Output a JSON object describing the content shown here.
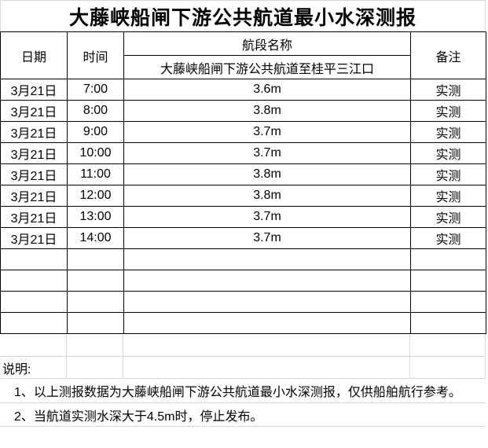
{
  "title": "大藤峡船闸下游公共航道最小水深测报",
  "table": {
    "headers": {
      "date": "日期",
      "time": "时间",
      "section_name": "航段名称",
      "section_value": "大藤峡船闸下游公共航道至桂平三江口",
      "remark": "备注"
    },
    "rows": [
      {
        "date": "3月21日",
        "time": "7:00",
        "depth": "3.6m",
        "remark": "实测"
      },
      {
        "date": "3月21日",
        "time": "8:00",
        "depth": "3.8m",
        "remark": "实测"
      },
      {
        "date": "3月21日",
        "time": "9:00",
        "depth": "3.7m",
        "remark": "实测"
      },
      {
        "date": "3月21日",
        "time": "10:00",
        "depth": "3.7m",
        "remark": "实测"
      },
      {
        "date": "3月21日",
        "time": "11:00",
        "depth": "3.8m",
        "remark": "实测"
      },
      {
        "date": "3月21日",
        "time": "12:00",
        "depth": "3.8m",
        "remark": "实测"
      },
      {
        "date": "3月21日",
        "time": "13:00",
        "depth": "3.7m",
        "remark": "实测"
      },
      {
        "date": "3月21日",
        "time": "14:00",
        "depth": "3.7m",
        "remark": "实测"
      },
      {
        "date": "",
        "time": "",
        "depth": "",
        "remark": ""
      },
      {
        "date": "",
        "time": "",
        "depth": "",
        "remark": ""
      },
      {
        "date": "",
        "time": "",
        "depth": "",
        "remark": ""
      },
      {
        "date": "",
        "time": "",
        "depth": "",
        "remark": ""
      }
    ]
  },
  "footer": {
    "label": "说明:",
    "notes": [
      "1、以上测报数据为大藤峡船闸下游公共航道最小水深测报，仅供船舶航行参考。",
      "2、当航道实测水深大于4.5m时，停止发布。"
    ]
  },
  "colors": {
    "border": "#000000",
    "gridline": "#d9d9d9",
    "background": "#ffffff",
    "text": "#000000"
  }
}
